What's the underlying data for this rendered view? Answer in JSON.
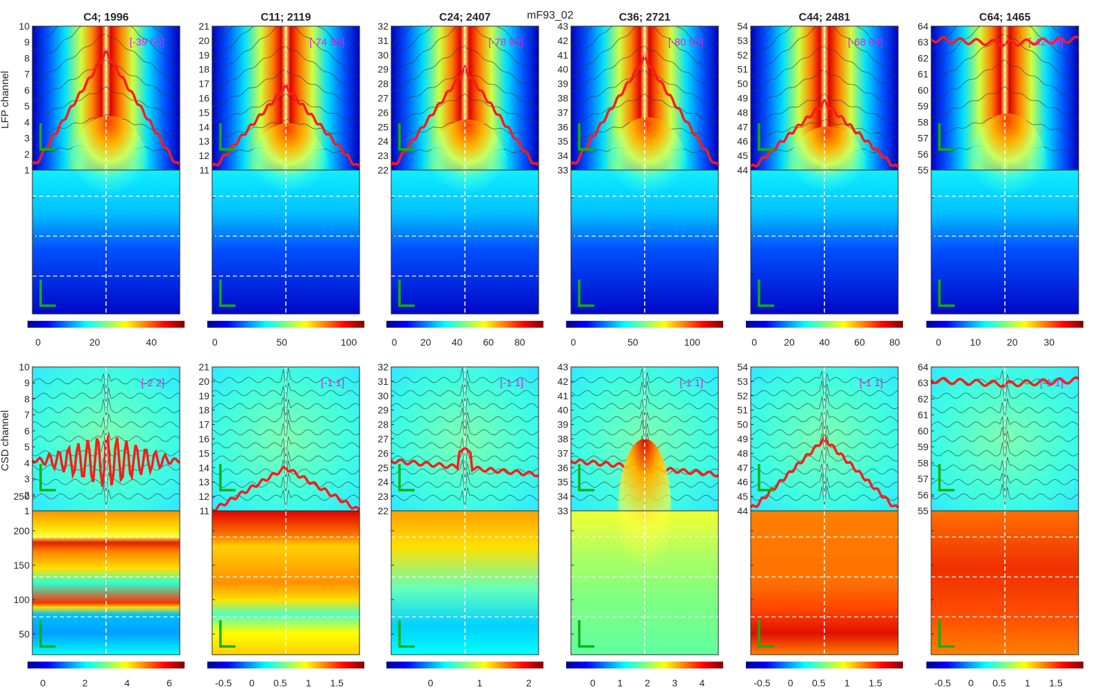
{
  "figure_title": "mF93_02",
  "colors": {
    "jet": [
      "#00008f",
      "#0000ff",
      "#0080ff",
      "#00ffff",
      "#80ff80",
      "#ffff00",
      "#ff8000",
      "#ff0000",
      "#800000"
    ],
    "trace": "#ff1a1a",
    "scale_bar": "#10b010",
    "annotation": "#e020e0",
    "dashed": "#ffffff"
  },
  "chart_data": [
    {
      "type": "heatmap",
      "name": "LFP",
      "ylabel": "LFP channel",
      "panels": [
        {
          "title": "C4; 1996",
          "channels": [
            "1",
            "2",
            "3",
            "4",
            "5",
            "6",
            "7",
            "8",
            "9",
            "10"
          ],
          "range_label": "[-39 55]",
          "colorbar_ticks": [
            "0",
            "20",
            "40"
          ],
          "clim": [
            -2,
            50
          ],
          "peak_frac": 0.82,
          "red_trace": "peak"
        },
        {
          "title": "C11; 2119",
          "channels": [
            "11",
            "12",
            "13",
            "14",
            "15",
            "16",
            "17",
            "18",
            "19",
            "20",
            "21"
          ],
          "range_label": "[-74 85]",
          "colorbar_ticks": [
            "0",
            "50",
            "100"
          ],
          "clim": [
            -2,
            108
          ],
          "peak_frac": 0.58,
          "red_trace": "peak"
        },
        {
          "title": "C24; 2407",
          "channels": [
            "22",
            "23",
            "24",
            "25",
            "26",
            "27",
            "28",
            "29",
            "30",
            "31",
            "32"
          ],
          "range_label": "[-78 93]",
          "colorbar_ticks": [
            "0",
            "20",
            "40",
            "60",
            "80"
          ],
          "clim": [
            -2,
            92
          ],
          "peak_frac": 0.7,
          "red_trace": "peak"
        },
        {
          "title": "C36; 2721",
          "channels": [
            "33",
            "34",
            "35",
            "36",
            "37",
            "38",
            "39",
            "40",
            "41",
            "42",
            "43"
          ],
          "range_label": "[-80 93]",
          "colorbar_ticks": [
            "0",
            "50",
            "100"
          ],
          "clim": [
            -2,
            122
          ],
          "peak_frac": 0.78,
          "red_trace": "peak"
        },
        {
          "title": "C44; 2481",
          "channels": [
            "44",
            "45",
            "46",
            "47",
            "48",
            "49",
            "50",
            "51",
            "52",
            "53",
            "54"
          ],
          "range_label": "[-68 84]",
          "colorbar_ticks": [
            "0",
            "20",
            "40",
            "60",
            "80"
          ],
          "clim": [
            -2,
            82
          ],
          "peak_frac": 0.47,
          "red_trace": "peak"
        },
        {
          "title": "C64; 1465",
          "channels": [
            "55",
            "56",
            "57",
            "58",
            "59",
            "60",
            "61",
            "62",
            "63",
            "64"
          ],
          "range_label": "[-42 64]",
          "colorbar_ticks": [
            "0",
            "10",
            "20",
            "30"
          ],
          "clim": [
            -2,
            38
          ],
          "peak_frac": 0.9,
          "red_trace": "top"
        }
      ]
    },
    {
      "type": "heatmap",
      "name": "CSD",
      "ylabel": "CSD channel",
      "lower_yticks": [
        "50",
        "100",
        "150",
        "200",
        "250"
      ],
      "panels": [
        {
          "channels": [
            "1",
            "2",
            "3",
            "4",
            "5",
            "6",
            "7",
            "8",
            "9",
            "10"
          ],
          "range_label": "[-2 2]",
          "colorbar_ticks": [
            "0",
            "2",
            "4",
            "6"
          ],
          "clim": [
            -0.5,
            6.5
          ],
          "red_trace": "oscillation"
        },
        {
          "channels": [
            "11",
            "12",
            "13",
            "14",
            "15",
            "16",
            "17",
            "18",
            "19",
            "20",
            "21"
          ],
          "range_label": "[-1 1]",
          "colorbar_ticks": [
            "-0.5",
            "0",
            "0.5",
            "1",
            "1.5"
          ],
          "clim": [
            -0.7,
            1.9
          ],
          "red_trace": "low"
        },
        {
          "channels": [
            "22",
            "23",
            "24",
            "25",
            "26",
            "27",
            "28",
            "29",
            "30",
            "31",
            "32"
          ],
          "range_label": "[-1 1]",
          "colorbar_ticks": [
            "0",
            "1",
            "2"
          ],
          "clim": [
            -0.8,
            2.2
          ],
          "red_trace": "mid"
        },
        {
          "channels": [
            "33",
            "34",
            "35",
            "36",
            "37",
            "38",
            "39",
            "40",
            "41",
            "42",
            "43"
          ],
          "range_label": "[-1 1]",
          "colorbar_ticks": [
            "0",
            "1",
            "2",
            "3",
            "4"
          ],
          "clim": [
            -0.8,
            4.6
          ],
          "red_trace": "mid"
        },
        {
          "channels": [
            "44",
            "45",
            "46",
            "47",
            "48",
            "49",
            "50",
            "51",
            "52",
            "53",
            "54"
          ],
          "range_label": "[-1 1]",
          "colorbar_ticks": [
            "-0.5",
            "0",
            "0.5",
            "1",
            "1.5"
          ],
          "clim": [
            -0.7,
            1.9
          ],
          "red_trace": "peak"
        },
        {
          "channels": [
            "55",
            "56",
            "57",
            "58",
            "59",
            "60",
            "61",
            "62",
            "63",
            "64"
          ],
          "range_label": "[-1 1]",
          "colorbar_ticks": [
            "-0.5",
            "0",
            "0.5",
            "1",
            "1.5"
          ],
          "clim": [
            -0.7,
            1.9
          ],
          "red_trace": "top"
        }
      ]
    }
  ]
}
